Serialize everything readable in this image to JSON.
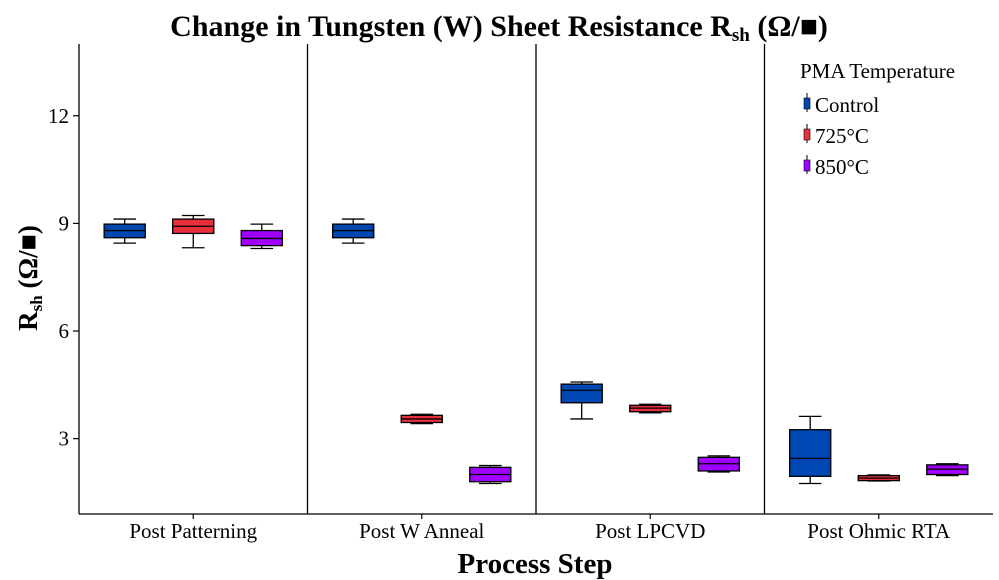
{
  "chart_data": {
    "type": "box",
    "title_main": "Change in Tungsten (W) Sheet Resistance R",
    "title_sub": "sh",
    "title_unit": " (Ω/■)",
    "ylabel_main": "R",
    "ylabel_sub": "sh",
    "ylabel_unit": " (Ω/■)",
    "xlabel": "Process Step",
    "ylim": [
      0.9,
      14.0
    ],
    "yticks": [
      3,
      6,
      9,
      12
    ],
    "categories": [
      "Post Patterning",
      "Post W Anneal",
      "Post LPCVD",
      "Post Ohmic RTA"
    ],
    "legend": {
      "title": "PMA Temperature",
      "position": "top-right",
      "items": [
        "Control",
        "725°C",
        "850°C"
      ]
    },
    "series": [
      {
        "name": "Control",
        "color": "#0047b3",
        "boxes": [
          {
            "min": 8.45,
            "q1": 8.6,
            "median": 8.8,
            "q3": 8.98,
            "max": 9.12
          },
          {
            "min": 8.45,
            "q1": 8.6,
            "median": 8.8,
            "q3": 8.98,
            "max": 9.12
          },
          {
            "min": 3.55,
            "q1": 4.0,
            "median": 4.35,
            "q3": 4.52,
            "max": 4.58
          },
          {
            "min": 1.75,
            "q1": 1.95,
            "median": 2.45,
            "q3": 3.25,
            "max": 3.62
          }
        ]
      },
      {
        "name": "725°C",
        "color": "#e8303c",
        "boxes": [
          {
            "min": 8.32,
            "q1": 8.72,
            "median": 8.92,
            "q3": 9.12,
            "max": 9.22
          },
          {
            "min": 3.42,
            "q1": 3.45,
            "median": 3.55,
            "q3": 3.65,
            "max": 3.68
          },
          {
            "min": 3.72,
            "q1": 3.75,
            "median": 3.85,
            "q3": 3.93,
            "max": 3.96
          },
          {
            "min": 1.82,
            "q1": 1.83,
            "median": 1.9,
            "q3": 1.97,
            "max": 1.99
          }
        ]
      },
      {
        "name": "850°C",
        "color": "#a000ff",
        "boxes": [
          {
            "min": 8.3,
            "q1": 8.38,
            "median": 8.58,
            "q3": 8.8,
            "max": 8.98
          },
          {
            "min": 1.75,
            "q1": 1.8,
            "median": 2.0,
            "q3": 2.2,
            "max": 2.25
          },
          {
            "min": 2.07,
            "q1": 2.1,
            "median": 2.3,
            "q3": 2.48,
            "max": 2.52
          },
          {
            "min": 1.97,
            "q1": 2.0,
            "median": 2.15,
            "q3": 2.27,
            "max": 2.3
          }
        ]
      }
    ]
  }
}
